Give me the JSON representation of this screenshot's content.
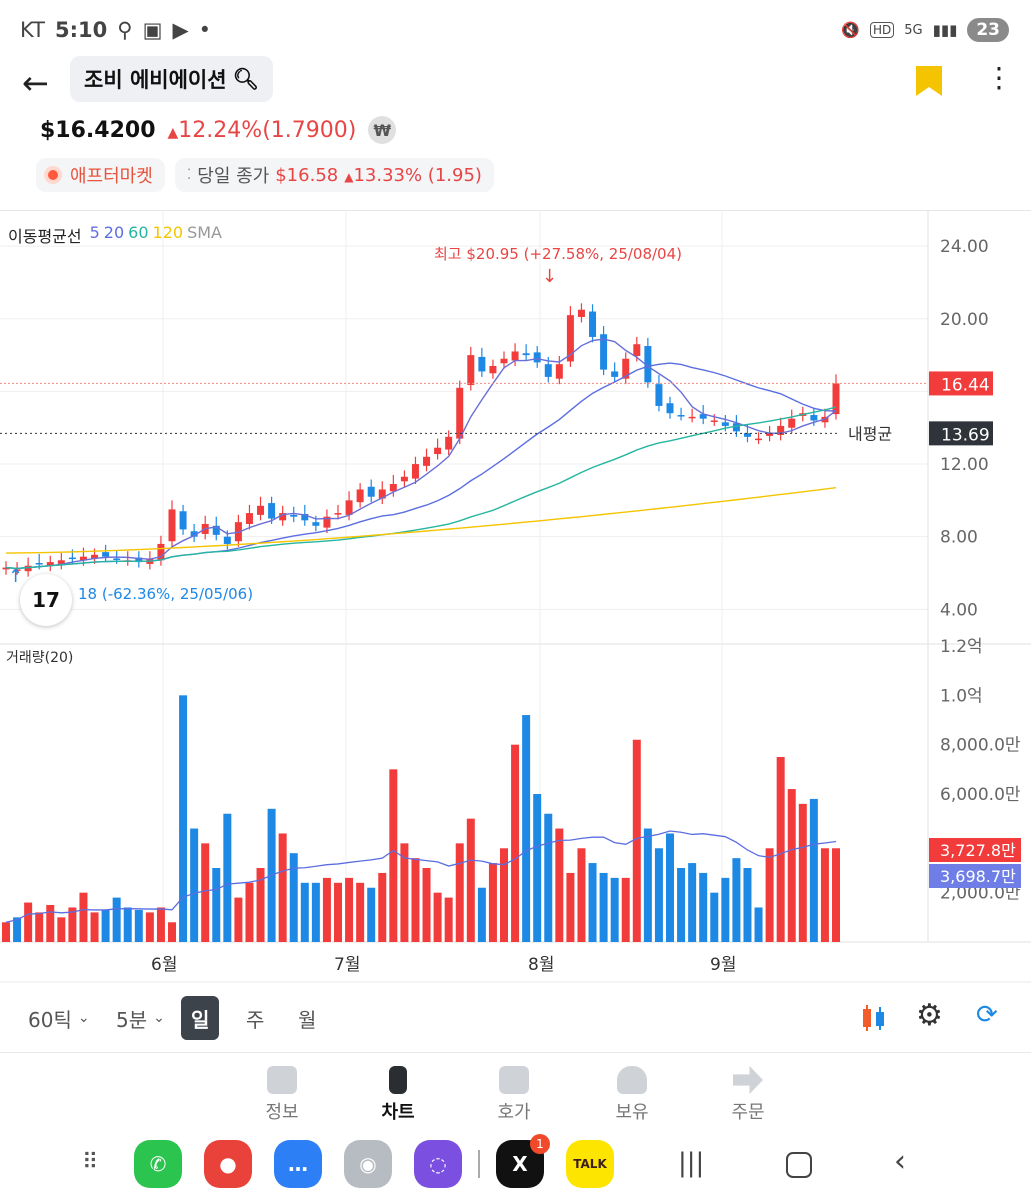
{
  "status": {
    "carrier": "KT",
    "time": "5:10",
    "hd": "HD",
    "net": "5G",
    "battery": "23"
  },
  "header": {
    "title": "조비 에비에이션"
  },
  "quote": {
    "price": "$16.4200",
    "change": "12.24%",
    "change_abs": "(1.7900)",
    "krw_icon": "₩"
  },
  "chips": {
    "aftermarket": "애프터마켓",
    "prev_close_label": "당일 종가",
    "prev_close_value": "$16.58",
    "prev_close_change": "13.33% (1.95)"
  },
  "legend": {
    "label": "이동평균선",
    "p5": "5",
    "p20": "20",
    "p60": "60",
    "p120": "120",
    "sma": "SMA"
  },
  "annotations": {
    "high": "최고 $20.95 (+27.58%, 25/08/04)",
    "low": "18 (-62.36%, 25/05/06)",
    "my_avg_label": "내평균"
  },
  "price_axis": {
    "ticks": [
      "24.00",
      "20.00",
      "12.00",
      "8.00",
      "4.00"
    ],
    "current": "16.44",
    "my_avg": "13.69"
  },
  "volume": {
    "label": "거래량(20)",
    "ticks": [
      "1.2억",
      "1.0억",
      "8,000.0만",
      "6,000.0만",
      "2,000.0만"
    ],
    "current": "3,727.8만",
    "ma": "3,698.7만"
  },
  "months": [
    "6월",
    "7월",
    "8월",
    "9월"
  ],
  "toolbar": {
    "tick": "60틱",
    "min": "5분",
    "day": "일",
    "week": "주",
    "month": "월"
  },
  "nav": {
    "info": "정보",
    "chart": "차트",
    "orderbook": "호가",
    "holdings": "보유",
    "order": "주문"
  },
  "dock": {
    "badge": "1",
    "talk": "TALK"
  },
  "colors": {
    "up": "#f23c3c",
    "down": "#1e88e5",
    "ma5": "#6a6fd8",
    "ma20": "#5b6ee1",
    "ma60": "#26b5a0",
    "ma120": "#f5c400"
  },
  "chart_data": {
    "type": "candlestick",
    "period": "daily",
    "candles_close": [
      6.3,
      6.2,
      6.4,
      6.5,
      6.6,
      6.7,
      6.8,
      6.9,
      7.0,
      6.9,
      6.8,
      6.7,
      6.6,
      6.8,
      7.6,
      9.5,
      8.4,
      8.0,
      8.7,
      8.1,
      7.6,
      8.8,
      9.3,
      9.7,
      9.0,
      9.3,
      9.1,
      8.9,
      8.6,
      9.1,
      9.3,
      10.0,
      10.6,
      10.2,
      10.6,
      10.9,
      11.3,
      12.0,
      12.4,
      12.9,
      13.5,
      16.2,
      18.0,
      17.1,
      17.4,
      17.8,
      18.2,
      18.0,
      17.6,
      16.8,
      17.5,
      20.2,
      20.5,
      19.0,
      17.2,
      16.8,
      17.8,
      18.6,
      16.5,
      15.2,
      14.8,
      14.7,
      14.6,
      14.5,
      14.4,
      14.1,
      13.8,
      13.5,
      13.4,
      13.7,
      14.1,
      14.5,
      14.8,
      14.4,
      14.6,
      16.44
    ],
    "high": {
      "value": 20.95,
      "change_pct": 27.58,
      "date": "25/08/04"
    },
    "low": {
      "change_pct": -62.36,
      "date": "25/05/06"
    },
    "current_price": 16.44,
    "avg_price": 13.69,
    "ylim": [
      2.2,
      25
    ],
    "volume_ylim": [
      0,
      120000000
    ],
    "volume": [
      8,
      10,
      16,
      12,
      15,
      10,
      14,
      20,
      12,
      13,
      18,
      14,
      13,
      12,
      14,
      8,
      100,
      46,
      40,
      30,
      52,
      18,
      24,
      30,
      54,
      44,
      36,
      24,
      24,
      26,
      24,
      26,
      24,
      22,
      28,
      70,
      40,
      34,
      30,
      20,
      18,
      40,
      50,
      22,
      32,
      38,
      80,
      92,
      60,
      52,
      46,
      28,
      38,
      32,
      28,
      26,
      26,
      82,
      46,
      38,
      44,
      30,
      32,
      28,
      20,
      26,
      34,
      30,
      14,
      38,
      75,
      62,
      56,
      58,
      38,
      38
    ],
    "volume_current": "3,727.8만",
    "volume_ma": "3,698.7만",
    "months": [
      "6월",
      "7월",
      "8월",
      "9월"
    ]
  }
}
